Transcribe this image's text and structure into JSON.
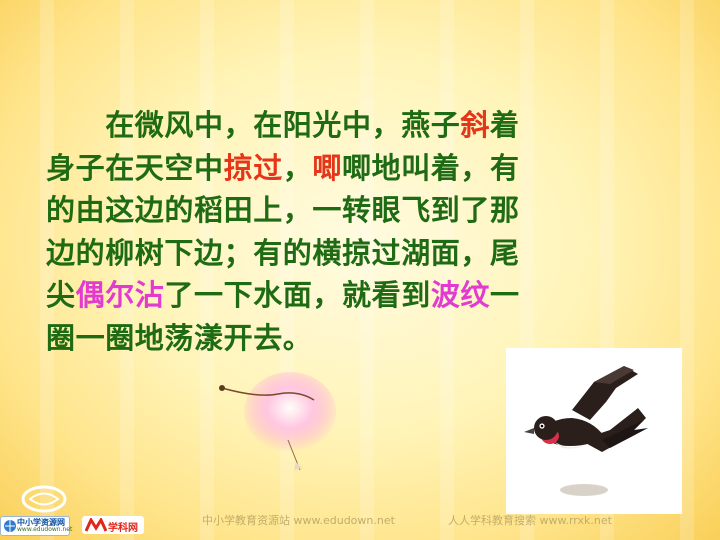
{
  "paragraph": {
    "line1": [
      {
        "text": "在微风中，在阳光中，燕子",
        "style": "normal"
      },
      {
        "text": "斜",
        "style": "red"
      },
      {
        "text": "着",
        "style": "normal"
      }
    ],
    "line2": [
      {
        "text": "身子在天空中",
        "style": "normal"
      },
      {
        "text": "掠过",
        "style": "red"
      },
      {
        "text": "，",
        "style": "normal"
      },
      {
        "text": "唧",
        "style": "red"
      },
      {
        "text": "唧地叫着，有",
        "style": "normal"
      }
    ],
    "line3": [
      {
        "text": "的由这边的稻田上，一转眼飞到了那",
        "style": "normal"
      }
    ],
    "line4": [
      {
        "text": "边的柳树下边；有的横掠过湖面，尾",
        "style": "normal"
      }
    ],
    "line5": [
      {
        "text": "尖",
        "style": "normal"
      },
      {
        "text": "偶尔沾",
        "style": "pink"
      },
      {
        "text": "了一下水面，就看到",
        "style": "normal"
      },
      {
        "text": "波纹",
        "style": "pink"
      },
      {
        "text": "一",
        "style": "normal"
      }
    ],
    "line6": [
      {
        "text": "圈一圈地荡漾开去。",
        "style": "normal"
      }
    ]
  },
  "footer": {
    "site1": "中小学教育资源站 www.edudown.net",
    "site2": "人人学科教育搜索 www.rrxk.net",
    "badge1_title": "中小学资源网",
    "badge1_sub": "www.edudown.net",
    "badge2_title": "学科网"
  },
  "colors": {
    "text": "#1f6b14",
    "highlight_red": "#e6361a",
    "highlight_pink": "#e23bd0"
  }
}
